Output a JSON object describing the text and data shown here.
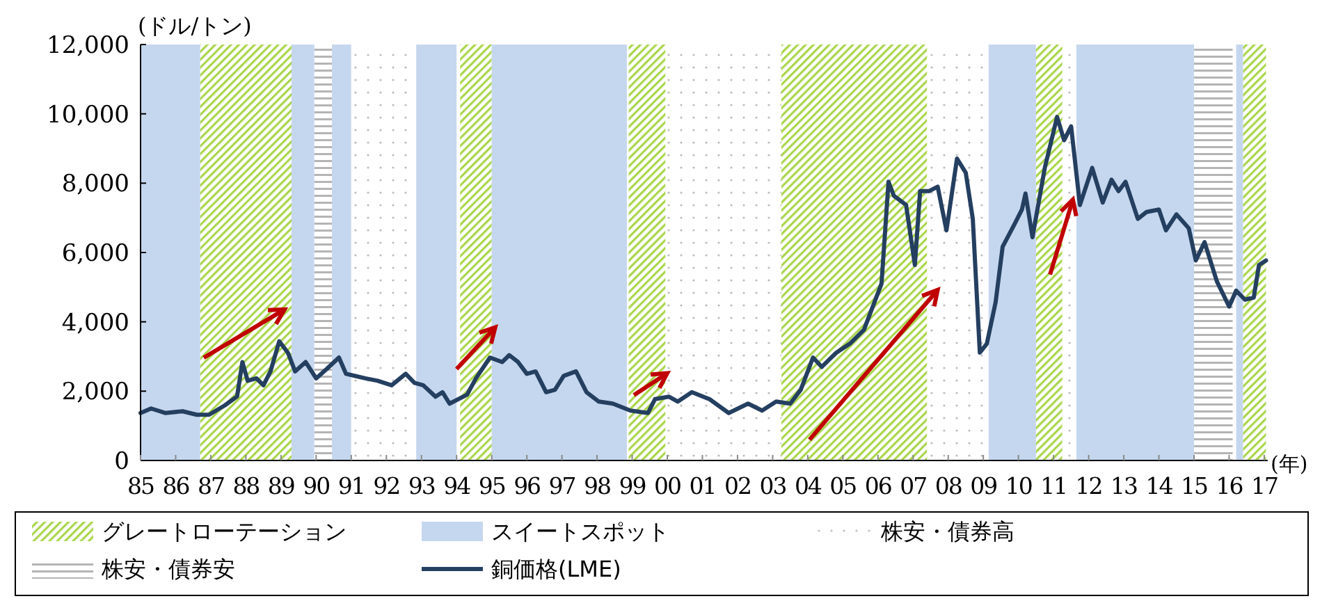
{
  "chart_data": {
    "type": "line",
    "ylabel": "(ドル/トン)",
    "xlabel": "(年)",
    "x": [
      1985.0,
      1985.3,
      1985.7,
      1986.2,
      1986.6,
      1986.95,
      1987.4,
      1987.75,
      1987.9,
      1988.05,
      1988.3,
      1988.5,
      1988.7,
      1988.95,
      1989.2,
      1989.4,
      1989.7,
      1990.0,
      1990.3,
      1990.65,
      1990.85,
      1991.4,
      1991.75,
      1992.15,
      1992.55,
      1992.8,
      1993.05,
      1993.4,
      1993.6,
      1993.8,
      1994.3,
      1994.55,
      1994.95,
      1995.3,
      1995.5,
      1995.75,
      1996.0,
      1996.25,
      1996.55,
      1996.8,
      1997.05,
      1997.4,
      1997.7,
      1998.05,
      1998.45,
      1998.95,
      1999.45,
      1999.65,
      2000.05,
      2000.3,
      2000.7,
      2001.2,
      2001.75,
      2002.3,
      2002.7,
      2003.1,
      2003.5,
      2003.8,
      2004.15,
      2004.4,
      2004.8,
      2005.2,
      2005.6,
      2006.1,
      2006.3,
      2006.45,
      2006.8,
      2007.05,
      2007.2,
      2007.45,
      2007.7,
      2007.95,
      2008.25,
      2008.5,
      2008.7,
      2008.9,
      2009.1,
      2009.35,
      2009.55,
      2009.9,
      2010.1,
      2010.2,
      2010.4,
      2010.75,
      2011.1,
      2011.3,
      2011.5,
      2011.75,
      2012.1,
      2012.4,
      2012.65,
      2012.85,
      2013.05,
      2013.4,
      2013.65,
      2014.0,
      2014.2,
      2014.5,
      2014.85,
      2015.05,
      2015.3,
      2015.65,
      2016.0,
      2016.2,
      2016.45,
      2016.7,
      2016.85,
      2017.05
    ],
    "series": [
      {
        "name": "銅価格(LME)",
        "color": "#243f60",
        "values": [
          1370,
          1500,
          1370,
          1420,
          1320,
          1320,
          1590,
          1850,
          2840,
          2300,
          2370,
          2170,
          2570,
          3440,
          3100,
          2570,
          2840,
          2370,
          2640,
          2970,
          2500,
          2370,
          2300,
          2170,
          2500,
          2240,
          2170,
          1840,
          1970,
          1640,
          1900,
          2370,
          2970,
          2840,
          3040,
          2840,
          2500,
          2570,
          1970,
          2040,
          2440,
          2570,
          1970,
          1700,
          1640,
          1440,
          1370,
          1770,
          1840,
          1700,
          1970,
          1770,
          1370,
          1640,
          1440,
          1700,
          1640,
          2040,
          2970,
          2700,
          3100,
          3370,
          3770,
          5100,
          8040,
          7640,
          7370,
          5640,
          7770,
          7770,
          7900,
          6640,
          8710,
          8300,
          6970,
          3110,
          3370,
          4570,
          6170,
          6840,
          7240,
          7700,
          6440,
          8440,
          9910,
          9240,
          9640,
          7370,
          8440,
          7440,
          8100,
          7770,
          8040,
          6970,
          7170,
          7240,
          6640,
          7100,
          6700,
          5770,
          6300,
          5170,
          4440,
          4900,
          4640,
          4700,
          5640,
          5770
        ]
      }
    ],
    "xlim": [
      1985,
      2017.1
    ],
    "xticks": [
      {
        "value": 1985,
        "label": "85"
      },
      {
        "value": 1986,
        "label": "86"
      },
      {
        "value": 1987,
        "label": "87"
      },
      {
        "value": 1988,
        "label": "88"
      },
      {
        "value": 1989,
        "label": "89"
      },
      {
        "value": 1990,
        "label": "90"
      },
      {
        "value": 1991,
        "label": "91"
      },
      {
        "value": 1992,
        "label": "92"
      },
      {
        "value": 1993,
        "label": "93"
      },
      {
        "value": 1994,
        "label": "94"
      },
      {
        "value": 1995,
        "label": "95"
      },
      {
        "value": 1996,
        "label": "96"
      },
      {
        "value": 1997,
        "label": "97"
      },
      {
        "value": 1998,
        "label": "98"
      },
      {
        "value": 1999,
        "label": "99"
      },
      {
        "value": 2000,
        "label": "00"
      },
      {
        "value": 2001,
        "label": "01"
      },
      {
        "value": 2002,
        "label": "02"
      },
      {
        "value": 2003,
        "label": "03"
      },
      {
        "value": 2004,
        "label": "04"
      },
      {
        "value": 2005,
        "label": "05"
      },
      {
        "value": 2006,
        "label": "06"
      },
      {
        "value": 2007,
        "label": "07"
      },
      {
        "value": 2008,
        "label": "08"
      },
      {
        "value": 2009,
        "label": "09"
      },
      {
        "value": 2010,
        "label": "10"
      },
      {
        "value": 2011,
        "label": "11"
      },
      {
        "value": 2012,
        "label": "12"
      },
      {
        "value": 2013,
        "label": "13"
      },
      {
        "value": 2014,
        "label": "14"
      },
      {
        "value": 2015,
        "label": "15"
      },
      {
        "value": 2016,
        "label": "16"
      },
      {
        "value": 2017,
        "label": "17"
      }
    ],
    "ylim": [
      0,
      12000
    ],
    "yticks": [
      0,
      {
        "value": 2000,
        "label": "2,000"
      },
      {
        "value": 4000,
        "label": "4,000"
      },
      {
        "value": 6000,
        "label": "6,000"
      },
      {
        "value": 8000,
        "label": "8,000"
      },
      {
        "value": 10000,
        "label": "10,000"
      },
      {
        "value": 12000,
        "label": "12,000"
      }
    ],
    "grid": false,
    "legend": "bottom",
    "line_style": "solid",
    "marker": "none",
    "bands": [
      {
        "axis": "x",
        "from": 1985.0,
        "to": 1986.7,
        "color": "#c5d7ee"
      },
      {
        "axis": "x",
        "from": 1986.7,
        "to": 1989.3,
        "label": "グレートローテーション",
        "color": "#a9d64c"
      },
      {
        "axis": "x",
        "from": 1989.3,
        "to": 1989.95,
        "label": "スイートスポット",
        "color": "#c5d7ee"
      },
      {
        "axis": "x",
        "from": 1989.95,
        "to": 1990.45,
        "color": "#b4b4b4"
      },
      {
        "axis": "x",
        "from": 1990.45,
        "to": 1991.0,
        "color": "#c5d7ee"
      },
      {
        "axis": "x",
        "from": 1991.0,
        "to": 1992.85,
        "label": "株安・債券高",
        "color": "#bdbdbd"
      },
      {
        "axis": "x",
        "from": 1992.85,
        "to": 1994.0,
        "color": "#c5d7ee"
      },
      {
        "axis": "x",
        "from": 1994.1,
        "to": 1995.0,
        "color": "#a9d64c"
      },
      {
        "axis": "x",
        "from": 1995.0,
        "to": 1998.85,
        "color": "#c5d7ee"
      },
      {
        "axis": "x",
        "from": 1998.9,
        "to": 1999.95,
        "color": "#a9d64c"
      },
      {
        "axis": "x",
        "from": 1999.95,
        "to": 2003.25,
        "color": "#bdbdbd"
      },
      {
        "axis": "x",
        "from": 2003.25,
        "to": 2007.4,
        "color": "#a9d64c"
      },
      {
        "axis": "x",
        "from": 2007.4,
        "to": 2009.15,
        "color": "#bdbdbd"
      },
      {
        "axis": "x",
        "from": 2009.15,
        "to": 2010.5,
        "color": "#c5d7ee"
      },
      {
        "axis": "x",
        "from": 2010.5,
        "to": 2011.25,
        "color": "#a9d64c"
      },
      {
        "axis": "x",
        "from": 2011.25,
        "to": 2011.65,
        "color": "#bdbdbd"
      },
      {
        "axis": "x",
        "from": 2011.65,
        "to": 2015.0,
        "color": "#c5d7ee"
      },
      {
        "axis": "x",
        "from": 2015.0,
        "to": 2016.1,
        "label": "株安・債券安",
        "color": "#b4b4b4"
      },
      {
        "axis": "x",
        "from": 2016.2,
        "to": 2016.4,
        "color": "#c5d7ee"
      },
      {
        "axis": "x",
        "from": 2016.4,
        "to": 2017.05,
        "color": "#a9d64c"
      }
    ]
  }
}
